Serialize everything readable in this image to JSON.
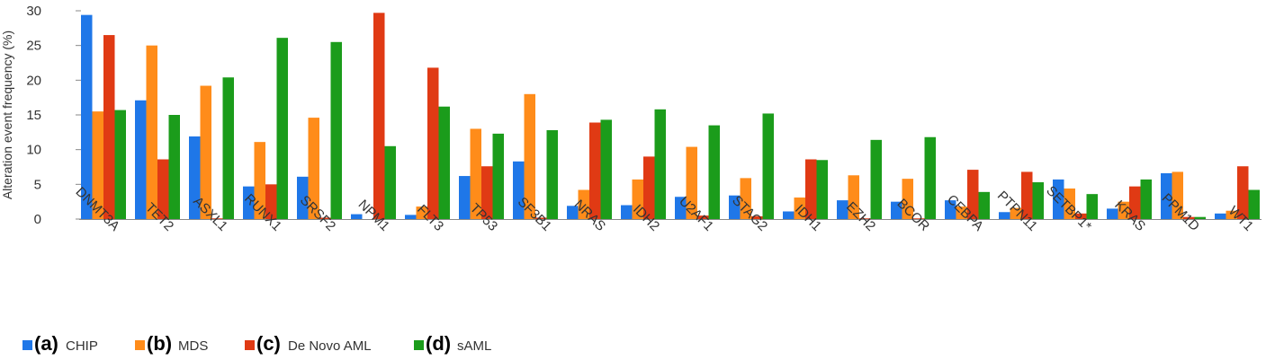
{
  "chart_data": {
    "type": "bar",
    "ylabel": "Alteration event frequency (%)",
    "xlabel": "",
    "ylim": [
      0,
      30
    ],
    "yticks": [
      0,
      5,
      10,
      15,
      20,
      25,
      30
    ],
    "grid": false,
    "legend_position": "bottom-left",
    "categories": [
      "DNMT3A",
      "TET2",
      "ASXL1",
      "RUNX1",
      "SRSF2",
      "NPM1",
      "FLT3",
      "TP53",
      "SF3B1",
      "NRAS",
      "IDH2",
      "U2AF1",
      "STAG2",
      "IDH1",
      "EZH2",
      "BCOR",
      "CEBPA",
      "PTPN11",
      "SETBP1*",
      "KRAS",
      "PPM1D",
      "WT1"
    ],
    "series": [
      {
        "letter": "(a)",
        "name": "CHIP",
        "color": "#1f77e8",
        "values": [
          29.4,
          17.1,
          11.9,
          4.7,
          6.1,
          0.7,
          0.6,
          6.2,
          8.3,
          1.9,
          2.0,
          3.2,
          3.4,
          1.1,
          2.7,
          2.5,
          2.7,
          1.0,
          5.7,
          1.5,
          6.6,
          0.8
        ]
      },
      {
        "letter": "(b)",
        "name": "MDS",
        "color": "#ff8c1a",
        "values": [
          15.5,
          25.0,
          19.2,
          11.1,
          14.6,
          0.0,
          1.8,
          13.0,
          18.0,
          4.2,
          5.7,
          10.4,
          5.9,
          3.1,
          6.3,
          5.8,
          1.8,
          1.6,
          4.4,
          2.5,
          6.8,
          1.2
        ]
      },
      {
        "letter": "(c)",
        "name": "De Novo AML",
        "color": "#e03a14",
        "values": [
          26.5,
          8.6,
          0.1,
          5.0,
          0.2,
          29.7,
          21.8,
          7.6,
          0.2,
          13.9,
          9.0,
          0.5,
          0.4,
          8.6,
          0.1,
          0.1,
          7.1,
          6.8,
          0.8,
          4.7,
          0.3,
          7.6
        ]
      },
      {
        "letter": "(d)",
        "name": "sAML",
        "color": "#1b9c1b",
        "values": [
          15.7,
          15.0,
          20.4,
          26.1,
          25.5,
          10.5,
          16.2,
          12.3,
          12.8,
          14.3,
          15.8,
          13.5,
          15.2,
          8.5,
          11.4,
          11.8,
          3.9,
          5.3,
          3.6,
          5.7,
          0.3,
          4.2
        ]
      }
    ]
  }
}
